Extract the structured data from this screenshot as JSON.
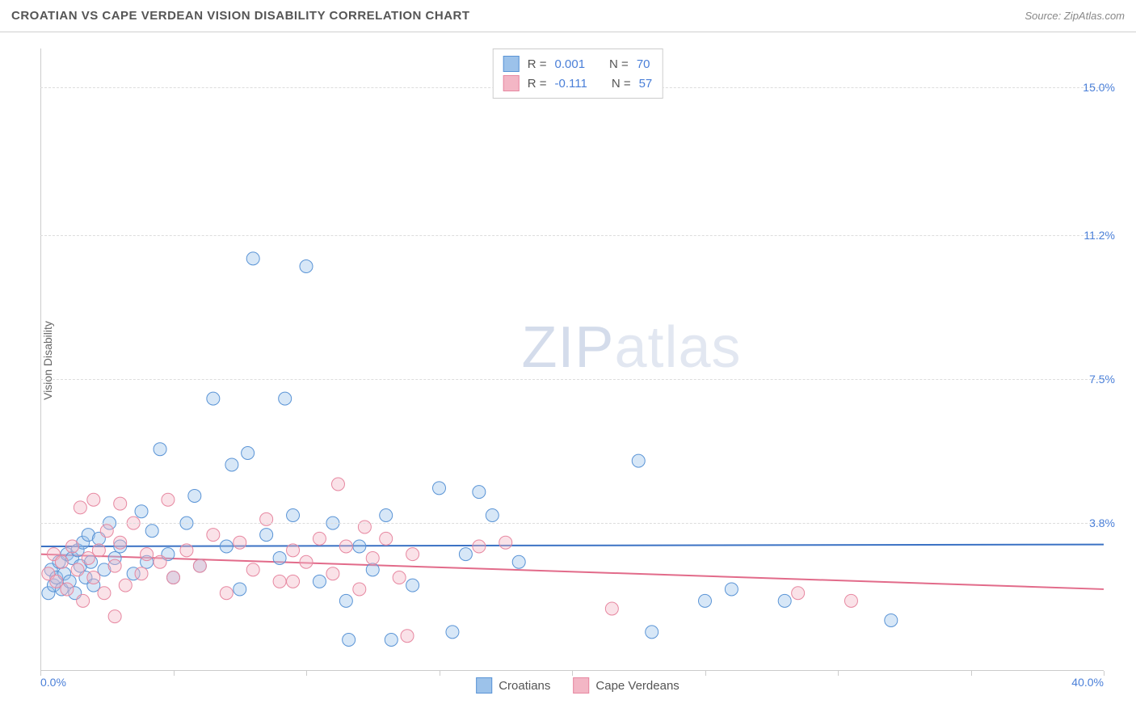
{
  "header": {
    "title": "CROATIAN VS CAPE VERDEAN VISION DISABILITY CORRELATION CHART",
    "source": "Source: ZipAtlas.com"
  },
  "chart": {
    "type": "scatter",
    "y_label": "Vision Disability",
    "background_color": "#ffffff",
    "grid_color": "#dddddd",
    "axis_color": "#cccccc",
    "tick_label_color": "#4a7fd8",
    "label_fontsize": 14,
    "title_fontsize": 15,
    "x_axis": {
      "min": 0.0,
      "max": 40.0,
      "tick_positions": [
        0,
        5,
        10,
        15,
        20,
        25,
        30,
        35,
        40
      ],
      "tick_labels_shown": {
        "0": "0.0%",
        "40": "40.0%"
      }
    },
    "y_axis": {
      "min": 0.0,
      "max": 16.0,
      "gridlines": [
        3.8,
        7.5,
        11.2,
        15.0
      ],
      "tick_labels": [
        "3.8%",
        "7.5%",
        "11.2%",
        "15.0%"
      ]
    },
    "watermark": {
      "zip": "ZIP",
      "atlas": "atlas"
    },
    "marker_radius": 8,
    "marker_fill_opacity": 0.4,
    "line_width": 2
  },
  "series": [
    {
      "name": "Croatians",
      "fill_color": "#9cc2ea",
      "stroke_color": "#5a94d6",
      "line_color": "#3b72c4",
      "R": "0.001",
      "N": "70",
      "regression": {
        "y_at_xmin": 3.2,
        "y_at_xmax": 3.25
      },
      "points": [
        [
          0.3,
          2.0
        ],
        [
          0.4,
          2.6
        ],
        [
          0.5,
          2.2
        ],
        [
          0.6,
          2.4
        ],
        [
          0.7,
          2.8
        ],
        [
          0.8,
          2.1
        ],
        [
          0.9,
          2.5
        ],
        [
          1.0,
          3.0
        ],
        [
          1.1,
          2.3
        ],
        [
          1.2,
          2.9
        ],
        [
          1.3,
          2.0
        ],
        [
          1.4,
          3.1
        ],
        [
          1.5,
          2.7
        ],
        [
          1.6,
          3.3
        ],
        [
          1.7,
          2.4
        ],
        [
          1.8,
          3.5
        ],
        [
          1.9,
          2.8
        ],
        [
          2.0,
          2.2
        ],
        [
          2.2,
          3.4
        ],
        [
          2.4,
          2.6
        ],
        [
          2.6,
          3.8
        ],
        [
          2.8,
          2.9
        ],
        [
          3.0,
          3.2
        ],
        [
          3.5,
          2.5
        ],
        [
          3.8,
          4.1
        ],
        [
          4.0,
          2.8
        ],
        [
          4.2,
          3.6
        ],
        [
          4.5,
          5.7
        ],
        [
          4.8,
          3.0
        ],
        [
          5.0,
          2.4
        ],
        [
          5.5,
          3.8
        ],
        [
          5.8,
          4.5
        ],
        [
          6.0,
          2.7
        ],
        [
          6.5,
          7.0
        ],
        [
          7.0,
          3.2
        ],
        [
          7.2,
          5.3
        ],
        [
          7.5,
          2.1
        ],
        [
          7.8,
          5.6
        ],
        [
          8.0,
          10.6
        ],
        [
          8.5,
          3.5
        ],
        [
          9.0,
          2.9
        ],
        [
          9.2,
          7.0
        ],
        [
          9.5,
          4.0
        ],
        [
          10.0,
          10.4
        ],
        [
          10.5,
          2.3
        ],
        [
          11.0,
          3.8
        ],
        [
          11.5,
          1.8
        ],
        [
          11.6,
          0.8
        ],
        [
          12.0,
          3.2
        ],
        [
          12.5,
          2.6
        ],
        [
          13.0,
          4.0
        ],
        [
          13.2,
          0.8
        ],
        [
          14.0,
          2.2
        ],
        [
          15.0,
          4.7
        ],
        [
          15.5,
          1.0
        ],
        [
          16.0,
          3.0
        ],
        [
          16.5,
          4.6
        ],
        [
          17.0,
          4.0
        ],
        [
          18.0,
          2.8
        ],
        [
          22.5,
          5.4
        ],
        [
          23.0,
          1.0
        ],
        [
          25.0,
          1.8
        ],
        [
          26.0,
          2.1
        ],
        [
          28.0,
          1.8
        ],
        [
          32.0,
          1.3
        ]
      ]
    },
    {
      "name": "Cape Verdeans",
      "fill_color": "#f3b6c5",
      "stroke_color": "#e788a1",
      "line_color": "#e26b8a",
      "R": "-0.111",
      "N": "57",
      "regression": {
        "y_at_xmin": 3.0,
        "y_at_xmax": 2.1
      },
      "points": [
        [
          0.3,
          2.5
        ],
        [
          0.5,
          3.0
        ],
        [
          0.6,
          2.3
        ],
        [
          0.8,
          2.8
        ],
        [
          1.0,
          2.1
        ],
        [
          1.2,
          3.2
        ],
        [
          1.4,
          2.6
        ],
        [
          1.5,
          4.2
        ],
        [
          1.6,
          1.8
        ],
        [
          1.8,
          2.9
        ],
        [
          2.0,
          2.4
        ],
        [
          2.0,
          4.4
        ],
        [
          2.2,
          3.1
        ],
        [
          2.4,
          2.0
        ],
        [
          2.5,
          3.6
        ],
        [
          2.8,
          2.7
        ],
        [
          2.8,
          1.4
        ],
        [
          3.0,
          3.3
        ],
        [
          3.0,
          4.3
        ],
        [
          3.2,
          2.2
        ],
        [
          3.5,
          3.8
        ],
        [
          3.8,
          2.5
        ],
        [
          4.0,
          3.0
        ],
        [
          4.5,
          2.8
        ],
        [
          4.8,
          4.4
        ],
        [
          5.0,
          2.4
        ],
        [
          5.5,
          3.1
        ],
        [
          6.0,
          2.7
        ],
        [
          6.5,
          3.5
        ],
        [
          7.0,
          2.0
        ],
        [
          7.5,
          3.3
        ],
        [
          8.0,
          2.6
        ],
        [
          8.5,
          3.9
        ],
        [
          9.0,
          2.3
        ],
        [
          9.5,
          3.1
        ],
        [
          9.5,
          2.3
        ],
        [
          10.0,
          2.8
        ],
        [
          10.5,
          3.4
        ],
        [
          11.0,
          2.5
        ],
        [
          11.2,
          4.8
        ],
        [
          11.5,
          3.2
        ],
        [
          12.0,
          2.1
        ],
        [
          12.2,
          3.7
        ],
        [
          12.5,
          2.9
        ],
        [
          13.0,
          3.4
        ],
        [
          13.5,
          2.4
        ],
        [
          13.8,
          0.9
        ],
        [
          14.0,
          3.0
        ],
        [
          16.5,
          3.2
        ],
        [
          17.5,
          3.3
        ],
        [
          21.5,
          1.6
        ],
        [
          28.5,
          2.0
        ],
        [
          30.5,
          1.8
        ]
      ]
    }
  ],
  "legend_labels": {
    "R": "R =",
    "N": "N ="
  }
}
